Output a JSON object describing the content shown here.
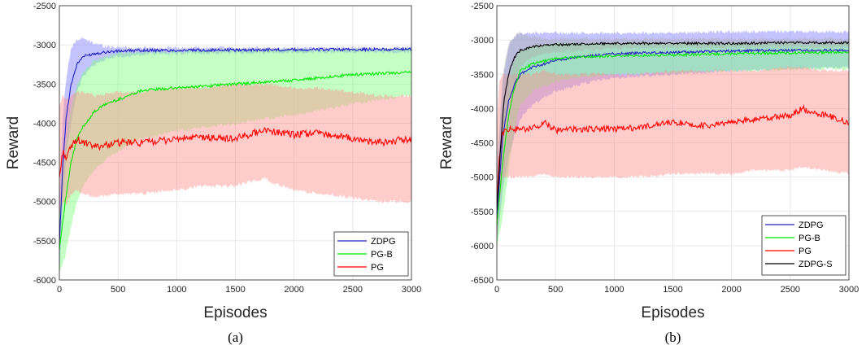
{
  "chart_data": [
    {
      "type": "line",
      "caption": "(a)",
      "xlabel": "Episodes",
      "ylabel": "Reward",
      "xlim": [
        0,
        3000
      ],
      "ylim": [
        -6000,
        -2500
      ],
      "xticks": [
        0,
        500,
        1000,
        1500,
        2000,
        2500,
        3000
      ],
      "yticks": [
        -6000,
        -5500,
        -5000,
        -4500,
        -4000,
        -3500,
        -3000,
        -2500
      ],
      "grid": true,
      "legend_position": "bottom-right",
      "series": [
        {
          "name": "ZDPG",
          "color": "#1f1fbf",
          "band_color": "#7b7bff",
          "x": [
            0,
            30,
            60,
            100,
            150,
            200,
            300,
            400,
            500,
            700,
            1000,
            1500,
            2000,
            2500,
            3000
          ],
          "y": [
            -5550,
            -4500,
            -3900,
            -3500,
            -3250,
            -3150,
            -3110,
            -3090,
            -3080,
            -3070,
            -3070,
            -3065,
            -3060,
            -3060,
            -3055
          ],
          "band_upper": [
            -5000,
            -3900,
            -3400,
            -3050,
            -2930,
            -2920,
            -2980,
            -3020,
            -3030,
            -3040,
            -3040,
            -3040,
            -3040,
            -3040,
            -3040
          ],
          "band_lower": [
            -6000,
            -5000,
            -4400,
            -4000,
            -3600,
            -3400,
            -3250,
            -3180,
            -3150,
            -3120,
            -3110,
            -3100,
            -3095,
            -3090,
            -3090
          ]
        },
        {
          "name": "PG-B",
          "color": "#00e600",
          "band_color": "#7dff7d",
          "x": [
            0,
            50,
            100,
            150,
            200,
            300,
            400,
            500,
            700,
            1000,
            1500,
            2000,
            2500,
            3000
          ],
          "y": [
            -5600,
            -5000,
            -4500,
            -4200,
            -4050,
            -3850,
            -3750,
            -3700,
            -3580,
            -3550,
            -3500,
            -3450,
            -3380,
            -3350
          ],
          "band_upper": [
            -5200,
            -4300,
            -3800,
            -3500,
            -3350,
            -3200,
            -3150,
            -3100,
            -3090,
            -3080,
            -3070,
            -3065,
            -3060,
            -3060
          ],
          "band_lower": [
            -5900,
            -5700,
            -5300,
            -5000,
            -4800,
            -4600,
            -4450,
            -4350,
            -4200,
            -4100,
            -4000,
            -3900,
            -3750,
            -3650
          ]
        },
        {
          "name": "PG",
          "color": "#ff0000",
          "band_color": "#ff8f8f",
          "x": [
            0,
            30,
            60,
            100,
            150,
            200,
            300,
            500,
            700,
            1000,
            1200,
            1500,
            1750,
            1800,
            2000,
            2200,
            2500,
            2700,
            3000
          ],
          "y": [
            -4700,
            -4350,
            -4450,
            -4300,
            -4200,
            -4250,
            -4300,
            -4250,
            -4250,
            -4200,
            -4180,
            -4200,
            -4080,
            -4100,
            -4150,
            -4120,
            -4200,
            -4250,
            -4200
          ],
          "band_upper": [
            -3800,
            -3650,
            -3700,
            -3650,
            -3600,
            -3600,
            -3650,
            -3600,
            -3600,
            -3550,
            -3550,
            -3500,
            -3500,
            -3500,
            -3550,
            -3550,
            -3600,
            -3650,
            -3650
          ],
          "band_lower": [
            -5200,
            -5000,
            -5050,
            -4900,
            -4850,
            -4900,
            -4950,
            -4900,
            -4900,
            -4850,
            -4800,
            -4800,
            -4700,
            -4750,
            -4850,
            -4900,
            -4950,
            -5000,
            -5000
          ]
        }
      ]
    },
    {
      "type": "line",
      "caption": "(b)",
      "xlabel": "Episodes",
      "ylabel": "Reward",
      "xlim": [
        0,
        3000
      ],
      "ylim": [
        -6500,
        -2500
      ],
      "xticks": [
        0,
        500,
        1000,
        1500,
        2000,
        2500,
        3000
      ],
      "yticks": [
        -6500,
        -6000,
        -5500,
        -5000,
        -4500,
        -4000,
        -3500,
        -3000,
        -2500
      ],
      "grid": true,
      "legend_position": "bottom-right",
      "series": [
        {
          "name": "ZDPG",
          "color": "#1f1fbf",
          "band_color": "#7b7bff",
          "x": [
            0,
            50,
            100,
            150,
            200,
            300,
            500,
            700,
            1000,
            1500,
            2000,
            2500,
            3000
          ],
          "y": [
            -5600,
            -4400,
            -3900,
            -3650,
            -3500,
            -3400,
            -3300,
            -3250,
            -3200,
            -3180,
            -3160,
            -3150,
            -3150
          ],
          "band_upper": [
            -5000,
            -3600,
            -3100,
            -2950,
            -2900,
            -2900,
            -2900,
            -2900,
            -2900,
            -2900,
            -2880,
            -2880,
            -2880
          ],
          "band_lower": [
            -6000,
            -5200,
            -4700,
            -4400,
            -4150,
            -3950,
            -3750,
            -3650,
            -3550,
            -3500,
            -3450,
            -3420,
            -3400
          ]
        },
        {
          "name": "PG-B",
          "color": "#00e600",
          "band_color": "#7dff7d",
          "x": [
            0,
            50,
            100,
            150,
            200,
            300,
            500,
            700,
            1000,
            1500,
            2000,
            2500,
            3000
          ],
          "y": [
            -5700,
            -4800,
            -4100,
            -3700,
            -3450,
            -3350,
            -3270,
            -3250,
            -3230,
            -3220,
            -3200,
            -3190,
            -3180
          ],
          "band_upper": [
            -5200,
            -4200,
            -3600,
            -3300,
            -3150,
            -3100,
            -3050,
            -3050,
            -3050,
            -3050,
            -3050,
            -3050,
            -3050
          ],
          "band_lower": [
            -6000,
            -5600,
            -4900,
            -4300,
            -3950,
            -3750,
            -3600,
            -3550,
            -3500,
            -3480,
            -3450,
            -3430,
            -3420
          ]
        },
        {
          "name": "PG",
          "color": "#ff0000",
          "band_color": "#ff8f8f",
          "x": [
            0,
            20,
            50,
            100,
            300,
            400,
            500,
            700,
            1000,
            1200,
            1500,
            1800,
            2000,
            2200,
            2500,
            2600,
            2800,
            3000
          ],
          "y": [
            -5400,
            -4700,
            -4350,
            -4300,
            -4300,
            -4200,
            -4320,
            -4300,
            -4300,
            -4280,
            -4200,
            -4250,
            -4200,
            -4150,
            -4100,
            -4000,
            -4100,
            -4200
          ],
          "band_upper": [
            -4300,
            -3600,
            -3500,
            -3500,
            -3500,
            -3450,
            -3500,
            -3500,
            -3500,
            -3500,
            -3450,
            -3450,
            -3450,
            -3450,
            -3400,
            -3400,
            -3450,
            -3450
          ],
          "band_lower": [
            -6000,
            -5400,
            -5000,
            -5000,
            -5000,
            -4950,
            -5000,
            -5000,
            -5000,
            -5000,
            -4950,
            -4950,
            -4950,
            -4900,
            -4900,
            -4850,
            -4900,
            -4950
          ]
        },
        {
          "name": "ZDPG-S",
          "color": "#000000",
          "band_color": "#b0b0b0",
          "x": [
            0,
            30,
            60,
            100,
            150,
            200,
            300,
            400,
            500,
            700,
            1000,
            1500,
            2000,
            2500,
            3000
          ],
          "y": [
            -5500,
            -4600,
            -3900,
            -3500,
            -3250,
            -3150,
            -3100,
            -3080,
            -3070,
            -3060,
            -3050,
            -3050,
            -3050,
            -3040,
            -3040
          ],
          "band_upper": [
            -5000,
            -4000,
            -3400,
            -3050,
            -2950,
            -2900,
            -2950,
            -2980,
            -2980,
            -2980,
            -2980,
            -2980,
            -2980,
            -2980,
            -2980
          ],
          "band_lower": [
            -5900,
            -5200,
            -4400,
            -3950,
            -3600,
            -3400,
            -3250,
            -3200,
            -3180,
            -3150,
            -3120,
            -3110,
            -3110,
            -3100,
            -3100
          ]
        }
      ]
    }
  ]
}
